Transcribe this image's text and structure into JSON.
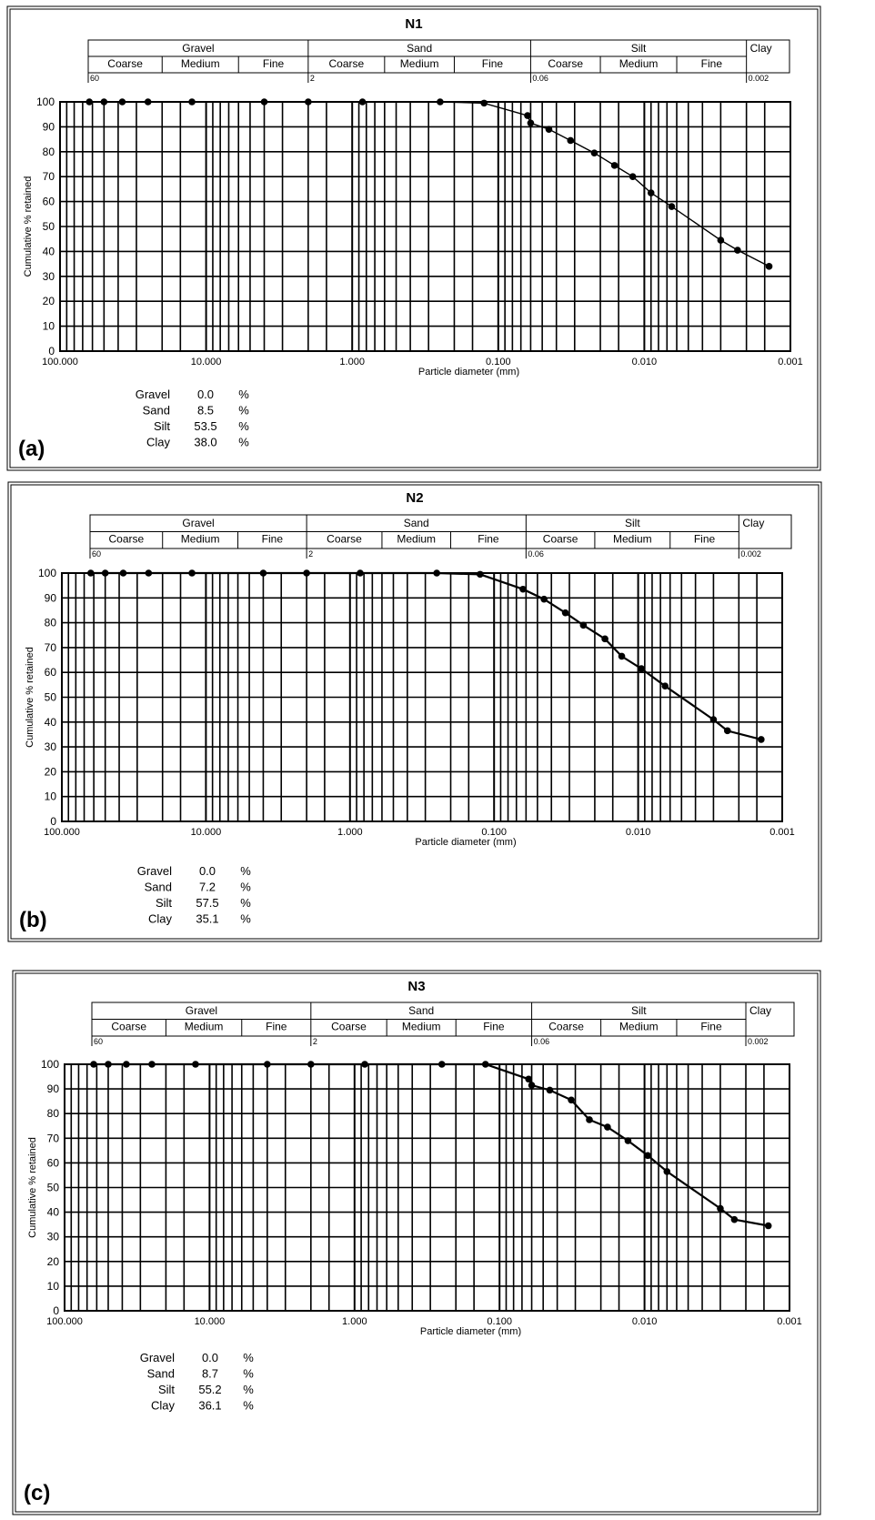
{
  "chart_data": [
    {
      "type": "line",
      "title": "N1",
      "panel_label": "(a)",
      "xlabel": "Particle diameter (mm)",
      "ylabel": "Cumulative % retained",
      "x_scale": "log",
      "x_reversed": true,
      "xlim": [
        100,
        0.001
      ],
      "ylim": [
        0,
        100
      ],
      "x_ticks": [
        "100.000",
        "10.000",
        "1.000",
        "0.100",
        "0.010",
        "0.001"
      ],
      "y_ticks": [
        "0",
        "10",
        "20",
        "30",
        "40",
        "50",
        "60",
        "70",
        "80",
        "90",
        "100"
      ],
      "grid": true,
      "series": [
        {
          "x": [
            63,
            50,
            37.5,
            25,
            12.5,
            4,
            2,
            0.85,
            0.25,
            0.125,
            0.063,
            0.06,
            0.045,
            0.032,
            0.022,
            0.016,
            0.012,
            0.009,
            0.0065,
            0.003,
            0.0023,
            0.0014
          ],
          "y": [
            100,
            100,
            100,
            100,
            100,
            100,
            100,
            100,
            100,
            99.5,
            94.5,
            91.5,
            89,
            84.5,
            79.5,
            74.5,
            70,
            63.5,
            58,
            44.5,
            40.5,
            34
          ]
        }
      ],
      "classification": {
        "groups": [
          "Gravel",
          "Sand",
          "Silt",
          "Clay"
        ],
        "subgroups": [
          "Coarse",
          "Medium",
          "Fine",
          "Coarse",
          "Medium",
          "Fine",
          "Coarse",
          "Medium",
          "Fine"
        ],
        "bounds": [
          "60",
          "2",
          "0.06",
          "0.002"
        ]
      },
      "summary": [
        {
          "label": "Gravel",
          "value": "0.0",
          "unit": "%"
        },
        {
          "label": "Sand",
          "value": "8.5",
          "unit": "%"
        },
        {
          "label": "Silt",
          "value": "53.5",
          "unit": "%"
        },
        {
          "label": "Clay",
          "value": "38.0",
          "unit": "%"
        }
      ]
    },
    {
      "type": "line",
      "title": "N2",
      "panel_label": "(b)",
      "xlabel": "Particle diameter (mm)",
      "ylabel": "Cumulative % retained",
      "x_scale": "log",
      "x_reversed": true,
      "xlim": [
        100,
        0.001
      ],
      "ylim": [
        0,
        100
      ],
      "x_ticks": [
        "100.000",
        "10.000",
        "1.000",
        "0.100",
        "0.010",
        "0.001"
      ],
      "y_ticks": [
        "0",
        "10",
        "20",
        "30",
        "40",
        "50",
        "60",
        "70",
        "80",
        "90",
        "100"
      ],
      "grid": true,
      "series": [
        {
          "x": [
            63,
            50,
            37.5,
            25,
            12.5,
            4,
            2,
            0.85,
            0.25,
            0.125,
            0.063,
            0.045,
            0.032,
            0.024,
            0.017,
            0.013,
            0.0095,
            0.0065,
            0.003,
            0.0024,
            0.0014
          ],
          "y": [
            100,
            100,
            100,
            100,
            100,
            100,
            100,
            100,
            100,
            99.5,
            93.5,
            89.5,
            84,
            79,
            73.5,
            66.5,
            61.5,
            54.5,
            41,
            36.5,
            33
          ]
        }
      ],
      "classification": {
        "groups": [
          "Gravel",
          "Sand",
          "Silt",
          "Clay"
        ],
        "subgroups": [
          "Coarse",
          "Medium",
          "Fine",
          "Coarse",
          "Medium",
          "Fine",
          "Coarse",
          "Medium",
          "Fine"
        ],
        "bounds": [
          "60",
          "2",
          "0.06",
          "0.002"
        ]
      },
      "summary": [
        {
          "label": "Gravel",
          "value": "0.0",
          "unit": "%"
        },
        {
          "label": "Sand",
          "value": "7.2",
          "unit": "%"
        },
        {
          "label": "Silt",
          "value": "57.5",
          "unit": "%"
        },
        {
          "label": "Clay",
          "value": "35.1",
          "unit": "%"
        }
      ]
    },
    {
      "type": "line",
      "title": "N3",
      "panel_label": "(c)",
      "xlabel": "Particle diameter (mm)",
      "ylabel": "Cumulative % retained",
      "x_scale": "log",
      "x_reversed": true,
      "xlim": [
        100,
        0.001
      ],
      "ylim": [
        0,
        100
      ],
      "x_ticks": [
        "100.000",
        "10.000",
        "1.000",
        "0.100",
        "0.010",
        "0.001"
      ],
      "y_ticks": [
        "0",
        "10",
        "20",
        "30",
        "40",
        "50",
        "60",
        "70",
        "80",
        "90",
        "100"
      ],
      "grid": true,
      "series": [
        {
          "x": [
            63,
            50,
            37.5,
            25,
            12.5,
            4,
            2,
            0.85,
            0.25,
            0.125,
            0.063,
            0.06,
            0.045,
            0.032,
            0.024,
            0.018,
            0.013,
            0.0095,
            0.007,
            0.003,
            0.0024,
            0.0014
          ],
          "y": [
            100,
            100,
            100,
            100,
            100,
            100,
            100,
            100,
            100,
            100,
            94,
            91.5,
            89.5,
            85.5,
            77.5,
            74.5,
            69,
            63,
            56.5,
            41.5,
            37,
            34.5
          ]
        }
      ],
      "classification": {
        "groups": [
          "Gravel",
          "Sand",
          "Silt",
          "Clay"
        ],
        "subgroups": [
          "Coarse",
          "Medium",
          "Fine",
          "Coarse",
          "Medium",
          "Fine",
          "Coarse",
          "Medium",
          "Fine"
        ],
        "bounds": [
          "60",
          "2",
          "0.06",
          "0.002"
        ]
      },
      "summary": [
        {
          "label": "Gravel",
          "value": "0.0",
          "unit": "%"
        },
        {
          "label": "Sand",
          "value": "8.7",
          "unit": "%"
        },
        {
          "label": "Silt",
          "value": "55.2",
          "unit": "%"
        },
        {
          "label": "Clay",
          "value": "36.1",
          "unit": "%"
        }
      ]
    }
  ]
}
